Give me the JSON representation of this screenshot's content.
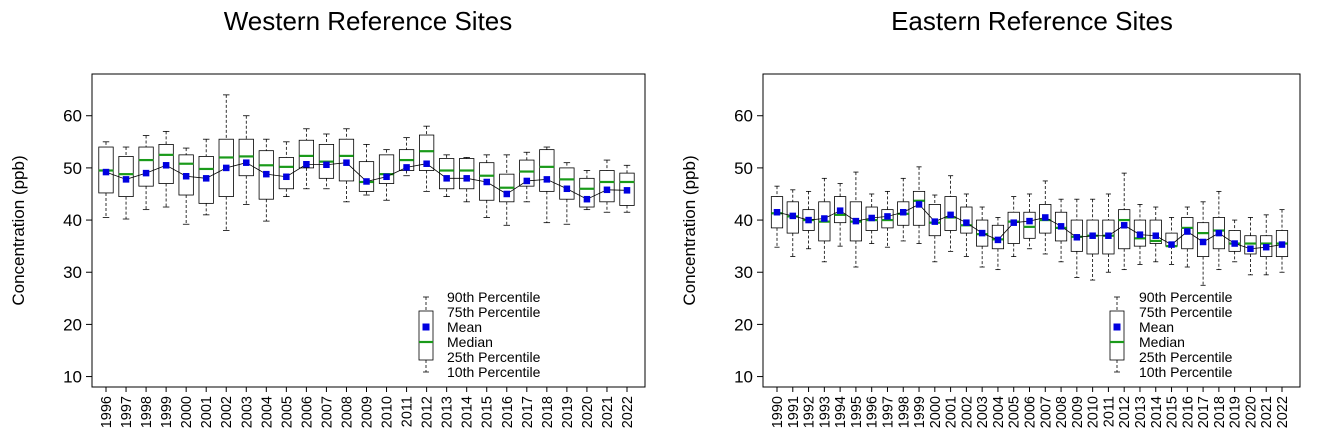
{
  "colors": {
    "median": "#1a9a1a",
    "mean": "#0000e0",
    "axis": "#000000",
    "box_fill": "#ffffff"
  },
  "legend": {
    "p90": "90th Percentile",
    "p75": "75th Percentile",
    "mean": "Mean",
    "median": "Median",
    "p25": "25th Percentile",
    "p10": "10th Percentile"
  },
  "chart_data": [
    {
      "type": "box",
      "title": "Western Reference Sites",
      "ylabel": "Concentration (ppb)",
      "xlabel": "",
      "ylim": [
        8,
        68
      ],
      "yticks": [
        10,
        20,
        30,
        40,
        50,
        60
      ],
      "legend_position": "bottom-right",
      "categories": [
        "1996",
        "1997",
        "1998",
        "1999",
        "2000",
        "2001",
        "2002",
        "2003",
        "2004",
        "2005",
        "2006",
        "2007",
        "2008",
        "2009",
        "2010",
        "2011",
        "2012",
        "2013",
        "2014",
        "2015",
        "2016",
        "2017",
        "2018",
        "2019",
        "2020",
        "2021",
        "2022"
      ],
      "p10": [
        40.5,
        40.2,
        42.0,
        42.5,
        39.2,
        41.0,
        38.0,
        43.0,
        39.8,
        44.5,
        46.0,
        46.0,
        43.5,
        44.8,
        43.8,
        48.5,
        45.5,
        44.5,
        43.5,
        40.5,
        39.0,
        43.5,
        39.5,
        39.2,
        42.0,
        41.5,
        41.5
      ],
      "p25": [
        45.2,
        44.5,
        46.5,
        47.0,
        44.8,
        43.2,
        44.5,
        48.5,
        44.0,
        46.0,
        50.0,
        48.0,
        47.5,
        45.5,
        47.0,
        49.5,
        49.5,
        46.0,
        46.0,
        43.8,
        43.5,
        46.5,
        45.5,
        44.0,
        42.5,
        43.5,
        42.8
      ],
      "median": [
        49.5,
        48.8,
        51.5,
        52.5,
        50.8,
        49.8,
        52.0,
        52.2,
        50.5,
        50.2,
        52.3,
        51.2,
        52.3,
        47.3,
        48.8,
        51.5,
        53.2,
        49.5,
        49.5,
        48.5,
        46.2,
        49.3,
        50.2,
        47.8,
        46.0,
        47.3,
        47.3
      ],
      "mean": [
        49.2,
        47.8,
        49.0,
        50.5,
        48.4,
        48.0,
        50.0,
        51.0,
        48.8,
        48.3,
        50.7,
        50.6,
        51.0,
        47.4,
        48.3,
        50.1,
        50.8,
        48.0,
        48.0,
        47.3,
        45.0,
        47.5,
        47.8,
        46.0,
        44.0,
        45.8,
        45.7
      ],
      "p75": [
        54.0,
        52.2,
        54.0,
        54.5,
        52.5,
        52.2,
        55.5,
        55.5,
        53.3,
        52.0,
        55.3,
        54.5,
        55.5,
        51.2,
        52.5,
        53.5,
        56.3,
        51.8,
        51.8,
        51.0,
        48.8,
        51.5,
        53.5,
        50.0,
        48.0,
        49.5,
        49.0
      ],
      "p90": [
        55.0,
        54.0,
        56.2,
        57.0,
        53.8,
        55.5,
        64.0,
        60.0,
        55.5,
        55.0,
        57.5,
        56.5,
        57.5,
        54.5,
        53.5,
        55.8,
        58.0,
        52.5,
        52.0,
        52.5,
        52.5,
        53.0,
        54.0,
        51.0,
        49.5,
        51.5,
        50.5
      ]
    },
    {
      "type": "box",
      "title": "Eastern Reference Sites",
      "ylabel": "Concentration (ppb)",
      "xlabel": "",
      "ylim": [
        8,
        68
      ],
      "yticks": [
        10,
        20,
        30,
        40,
        50,
        60
      ],
      "legend_position": "bottom-right",
      "categories": [
        "1990",
        "1991",
        "1992",
        "1993",
        "1994",
        "1995",
        "1996",
        "1997",
        "1998",
        "1999",
        "2000",
        "2001",
        "2002",
        "2003",
        "2004",
        "2005",
        "2006",
        "2007",
        "2008",
        "2009",
        "2010",
        "2011",
        "2012",
        "2013",
        "2014",
        "2015",
        "2016",
        "2017",
        "2018",
        "2019",
        "2020",
        "2021",
        "2022"
      ],
      "p10": [
        34.8,
        33.0,
        34.5,
        32.0,
        35.0,
        31.0,
        35.5,
        34.8,
        36.0,
        35.5,
        32.0,
        34.0,
        33.0,
        31.0,
        30.5,
        33.0,
        34.5,
        33.5,
        32.0,
        29.0,
        28.5,
        30.0,
        30.5,
        31.5,
        32.0,
        31.5,
        31.0,
        27.5,
        30.5,
        32.0,
        29.5,
        29.5,
        30.0
      ],
      "p25": [
        38.5,
        37.5,
        38.0,
        36.0,
        39.5,
        36.0,
        38.0,
        38.5,
        39.0,
        39.0,
        37.0,
        38.0,
        37.5,
        35.0,
        34.5,
        35.5,
        36.5,
        37.5,
        36.0,
        34.0,
        33.5,
        33.5,
        34.5,
        35.0,
        35.5,
        35.0,
        34.5,
        33.0,
        34.5,
        34.0,
        33.5,
        33.0,
        33.0
      ],
      "median": [
        41.3,
        40.7,
        40.0,
        39.7,
        41.0,
        39.7,
        40.0,
        40.0,
        41.2,
        43.7,
        39.5,
        40.5,
        39.0,
        37.3,
        36.3,
        39.7,
        38.7,
        40.0,
        38.5,
        36.8,
        37.0,
        37.0,
        40.0,
        36.5,
        36.0,
        35.0,
        38.5,
        37.5,
        38.0,
        35.5,
        35.5,
        35.5,
        35.5
      ],
      "mean": [
        41.5,
        40.8,
        40.0,
        40.3,
        41.8,
        39.8,
        40.4,
        40.7,
        41.5,
        43.0,
        39.7,
        41.0,
        39.5,
        37.5,
        36.2,
        39.5,
        39.8,
        40.5,
        38.8,
        36.7,
        37.0,
        37.0,
        39.0,
        37.2,
        37.0,
        35.3,
        37.8,
        35.8,
        37.5,
        35.5,
        34.5,
        34.8,
        35.3
      ],
      "p75": [
        44.5,
        43.5,
        42.0,
        43.5,
        44.5,
        43.5,
        42.5,
        42.0,
        43.5,
        45.5,
        43.0,
        44.5,
        42.5,
        40.0,
        39.0,
        41.5,
        41.5,
        43.0,
        41.5,
        40.0,
        40.0,
        40.0,
        42.0,
        40.0,
        40.0,
        37.5,
        40.5,
        39.5,
        40.5,
        38.0,
        37.0,
        37.0,
        38.0
      ],
      "p90": [
        46.5,
        45.8,
        45.5,
        48.0,
        47.0,
        49.2,
        45.0,
        45.5,
        48.0,
        50.2,
        44.8,
        48.5,
        45.0,
        42.5,
        40.5,
        44.5,
        45.0,
        47.5,
        44.0,
        44.0,
        44.0,
        45.0,
        49.0,
        43.0,
        42.5,
        40.5,
        42.5,
        43.5,
        45.5,
        40.0,
        40.5,
        41.0,
        42.0
      ]
    }
  ]
}
